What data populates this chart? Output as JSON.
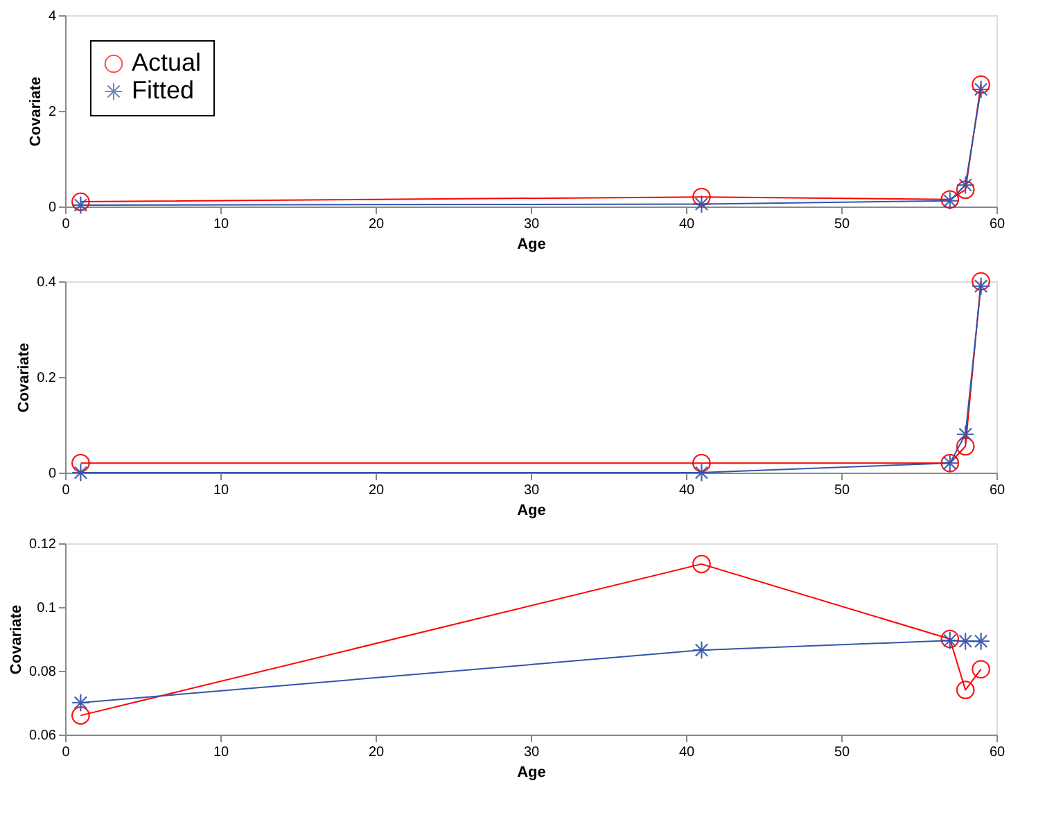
{
  "chart_data": [
    {
      "type": "line",
      "xlabel": "Age",
      "ylabel": "Covariate",
      "x": [
        1,
        41,
        57,
        58,
        59
      ],
      "xlim": [
        0,
        60
      ],
      "xticks": [
        0,
        10,
        20,
        30,
        40,
        50,
        60
      ],
      "ylim": [
        0,
        4
      ],
      "yticks": [
        0,
        2,
        4
      ],
      "grid": false,
      "legend": "top left",
      "line_style": "solid",
      "series": [
        {
          "name": "Actual",
          "color": "#ff0000",
          "marker": "circle",
          "values": [
            0.1,
            0.2,
            0.15,
            0.35,
            2.55
          ]
        },
        {
          "name": "Fitted",
          "color": "#3355aa",
          "marker": "cross",
          "values": [
            0.03,
            0.05,
            0.12,
            0.45,
            2.45
          ]
        }
      ]
    },
    {
      "type": "line",
      "xlabel": "Age",
      "ylabel": "Covariate",
      "x": [
        1,
        41,
        57,
        58,
        59
      ],
      "xlim": [
        0,
        60
      ],
      "xticks": [
        0,
        10,
        20,
        30,
        40,
        50,
        60
      ],
      "ylim": [
        0,
        0.4
      ],
      "yticks": [
        0,
        0.2,
        0.4
      ],
      "grid": false,
      "legend": "top left",
      "line_style": "solid",
      "series": [
        {
          "name": "Actual",
          "color": "#ff0000",
          "marker": "circle",
          "values": [
            0.02,
            0.02,
            0.02,
            0.055,
            0.4
          ]
        },
        {
          "name": "Fitted",
          "color": "#3355aa",
          "marker": "cross",
          "values": [
            0.0,
            0.0,
            0.02,
            0.08,
            0.39
          ]
        }
      ]
    },
    {
      "type": "line",
      "xlabel": "Age",
      "ylabel": "Covariate",
      "x": [
        1,
        41,
        57,
        58,
        59
      ],
      "xlim": [
        0,
        60
      ],
      "xticks": [
        0,
        10,
        20,
        30,
        40,
        50,
        60
      ],
      "ylim": [
        0.06,
        0.12
      ],
      "yticks": [
        0.06,
        0.08,
        0.1,
        0.12
      ],
      "grid": false,
      "legend": "top left",
      "line_style": "solid",
      "series": [
        {
          "name": "Actual",
          "color": "#ff0000",
          "marker": "circle",
          "values": [
            0.066,
            0.1135,
            0.09,
            0.074,
            0.0805
          ]
        },
        {
          "name": "Fitted",
          "color": "#3355aa",
          "marker": "cross",
          "values": [
            0.07,
            0.0865,
            0.0895,
            0.0893,
            0.0893
          ]
        }
      ]
    }
  ]
}
